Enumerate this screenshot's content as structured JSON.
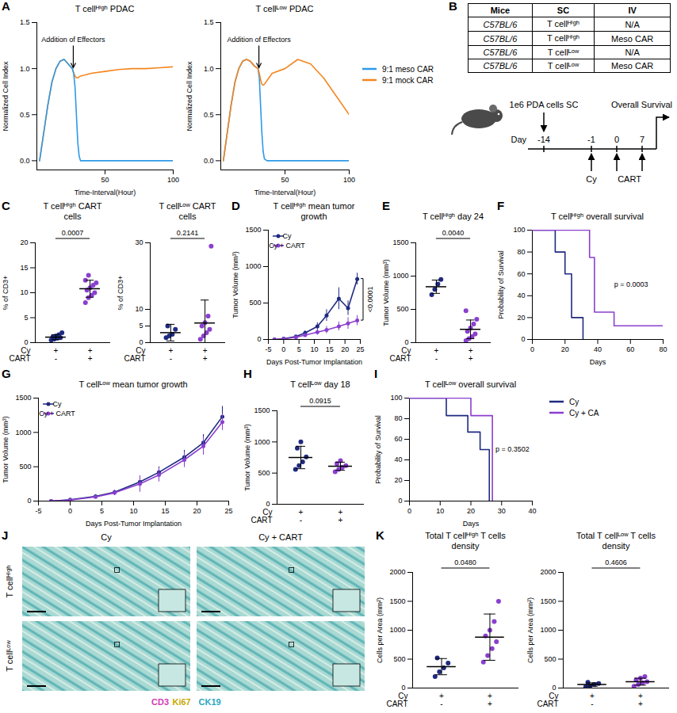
{
  "chart_data": [
    {
      "panel": "A",
      "type": "line",
      "title": "T cellᴴⁱᵍʰ PDAC",
      "x_label": "Time-Interval(Hour)",
      "y_label": "Normalized Cell Index",
      "xlim": [
        0,
        100
      ],
      "xticks": [
        50,
        100
      ],
      "ylim": [
        -0.1,
        1.5
      ],
      "yticks": [
        {
          "value": 0,
          "label": "0.0"
        },
        {
          "value": 0.5,
          "label": "0.5"
        },
        {
          "value": 1,
          "label": "1.0"
        },
        {
          "value": 1.5,
          "label": "1.5"
        }
      ],
      "series": [
        {
          "color": "#f5861f",
          "x": [
            2,
            5,
            8,
            11,
            14,
            17,
            20,
            23,
            26,
            27,
            28,
            29,
            30,
            31,
            32,
            35,
            40,
            50,
            60,
            70,
            80,
            90,
            100
          ],
          "values": [
            0,
            0.3,
            0.6,
            0.85,
            1.0,
            1.08,
            1.1,
            1.05,
            1.0,
            0.95,
            0.92,
            0.9,
            0.9,
            0.91,
            0.92,
            0.93,
            0.95,
            0.97,
            0.99,
            1.0,
            1.0,
            1.01,
            1.02
          ]
        },
        {
          "color": "#2d9ae8",
          "x": [
            2,
            5,
            8,
            11,
            14,
            17,
            20,
            23,
            26,
            27,
            28,
            29,
            30,
            31,
            32,
            35,
            40,
            50,
            60,
            70,
            80,
            90,
            100
          ],
          "values": [
            0,
            0.3,
            0.6,
            0.85,
            1.0,
            1.08,
            1.1,
            1.05,
            1.0,
            0.95,
            0.8,
            0.5,
            0.2,
            0.05,
            0,
            0,
            0,
            0,
            0,
            0,
            0,
            0,
            0
          ]
        }
      ],
      "arrows": [
        {
          "text": "Addition of Effectors",
          "x": 27,
          "y": 0.98
        }
      ]
    },
    {
      "panel": "A",
      "type": "line",
      "title": "T cellᴸᵒʷ PDAC",
      "x_label": "Time-Interval(Hour)",
      "y_label": "Normalized Cell Index",
      "xlim": [
        0,
        100
      ],
      "xticks": [
        50,
        100
      ],
      "ylim": [
        -0.1,
        1.5
      ],
      "yticks": [
        {
          "value": 0,
          "label": "0.0"
        },
        {
          "value": 0.5,
          "label": "0.5"
        },
        {
          "value": 1,
          "label": "1.0"
        },
        {
          "value": 1.5,
          "label": "1.5"
        }
      ],
      "legend": "right",
      "series": [
        {
          "name": "9:1 meso CAR",
          "color": "#2d9ae8",
          "x": [
            2,
            5,
            8,
            11,
            14,
            17,
            20,
            23,
            26,
            29,
            30,
            31,
            32,
            33,
            34,
            36,
            40,
            50,
            60,
            70,
            80,
            90,
            100
          ],
          "values": [
            0,
            0.3,
            0.6,
            0.85,
            1.0,
            1.08,
            1.1,
            1.08,
            1.03,
            1.0,
            0.9,
            0.6,
            0.3,
            0.1,
            0.02,
            0,
            0,
            0,
            0,
            0,
            0,
            0,
            0
          ]
        },
        {
          "name": "9:1 mock CAR",
          "color": "#f5861f",
          "x": [
            2,
            5,
            8,
            11,
            14,
            17,
            20,
            23,
            26,
            29,
            30,
            31,
            32,
            33,
            34,
            36,
            40,
            50,
            60,
            70,
            80,
            90,
            100
          ],
          "values": [
            0,
            0.3,
            0.6,
            0.85,
            1.0,
            1.08,
            1.1,
            1.08,
            1.03,
            1.0,
            0.95,
            0.88,
            0.83,
            0.82,
            0.83,
            0.87,
            0.95,
            1.0,
            1.1,
            1.05,
            0.9,
            0.7,
            0.5
          ]
        }
      ],
      "arrows": [
        {
          "text": "Addition of Effectors",
          "x": 30,
          "y": 0.98
        }
      ]
    },
    {
      "panel": "C",
      "type": "scatter",
      "title": "T cellᴴⁱᵍʰ CART cells",
      "y_label": "% of CD3+",
      "ylim": [
        0,
        20
      ],
      "yticks": [
        0,
        5,
        10,
        15,
        20
      ],
      "condition_rows": [
        {
          "name": "Cy",
          "marks": [
            "+",
            "+"
          ]
        },
        {
          "name": "CART",
          "marks": [
            "-",
            "+"
          ]
        }
      ],
      "groups": [
        {
          "color": "#1f2a80",
          "values": [
            0.5,
            0.7,
            0.9,
            1.0,
            1.1,
            1.3,
            1.6,
            2.0
          ],
          "mean": 1.1,
          "error": 0.5
        },
        {
          "color": "#8a3fcf",
          "values": [
            8.0,
            9.0,
            9.5,
            10.0,
            10.5,
            11.0,
            11.5,
            12.0,
            12.5,
            13.5
          ],
          "mean": 10.8,
          "error": 1.7
        }
      ],
      "p_value": "0.0007"
    },
    {
      "panel": "C",
      "type": "scatter",
      "title": "T cellᴸᵒʷ CART cells",
      "y_label": "% of CD3+",
      "ylim": [
        0,
        30
      ],
      "yticks": [
        0,
        5,
        10,
        30
      ],
      "condition_rows": [
        {
          "name": "Cy",
          "marks": [
            "+",
            "+"
          ]
        },
        {
          "name": "CART",
          "marks": [
            "-",
            "+"
          ]
        }
      ],
      "groups": [
        {
          "color": "#1f2a80",
          "values": [
            1.5,
            2.0,
            2.5,
            4.0,
            5.0
          ],
          "mean": 3.0,
          "error": 2.5
        },
        {
          "color": "#8a3fcf",
          "values": [
            1.0,
            2.0,
            3.0,
            4.0,
            5.0,
            6.0,
            8.0,
            29.0
          ],
          "mean": 5.9,
          "error": 6.9
        }
      ],
      "p_value": "0.2141"
    },
    {
      "panel": "D",
      "type": "line",
      "title": "T cellᴴⁱᵍʰ mean tumor growth",
      "x_label": "Days Post-Tumor Implantation",
      "y_label": "Tumor Volume (mm³)",
      "xlim": [
        -5,
        25
      ],
      "xticks": [
        -5,
        0,
        5,
        10,
        15,
        20,
        25
      ],
      "ylim": [
        0,
        1500
      ],
      "yticks": [
        0,
        500,
        1000,
        1500
      ],
      "legend": "top-left",
      "marker": "circle",
      "series": [
        {
          "name": "Cy",
          "color": "#1f2a80",
          "x": [
            -3,
            0,
            4,
            7,
            11,
            14,
            18,
            21,
            24
          ],
          "values": [
            0,
            10,
            40,
            90,
            180,
            330,
            560,
            430,
            830
          ],
          "errors": [
            0,
            5,
            15,
            30,
            50,
            80,
            150,
            100,
            80
          ]
        },
        {
          "name": "Cy + CART",
          "color": "#8a3fcf",
          "x": [
            -3,
            0,
            4,
            7,
            11,
            14,
            18,
            21,
            24
          ],
          "values": [
            0,
            8,
            30,
            60,
            100,
            130,
            180,
            220,
            260
          ],
          "errors": [
            0,
            5,
            10,
            20,
            40,
            50,
            60,
            80,
            70
          ]
        }
      ],
      "p_value": "<0.0001"
    },
    {
      "panel": "E",
      "type": "scatter",
      "title": "T cellᴴⁱᵍʰ day 24",
      "y_label": "Tumor Volume (mm³)",
      "ylim": [
        0,
        1500
      ],
      "yticks": [
        0,
        500,
        1000,
        1500
      ],
      "condition_rows": [
        {
          "name": "Cy",
          "marks": [
            "+",
            "+"
          ]
        },
        {
          "name": "CART",
          "marks": [
            "-",
            "+"
          ]
        }
      ],
      "groups": [
        {
          "color": "#1f2a80",
          "values": [
            720,
            800,
            880,
            950
          ],
          "mean": 840,
          "error": 100
        },
        {
          "color": "#8a3fcf",
          "values": [
            30,
            60,
            90,
            130,
            170,
            220,
            280,
            350,
            480
          ],
          "mean": 200,
          "error": 140
        }
      ],
      "p_value": "0.0040"
    },
    {
      "panel": "F",
      "type": "survival",
      "title": "T cellᴴⁱᵍʰ overall survival",
      "x_label": "Days",
      "y_label": "Probability of Survival",
      "xlim": [
        0,
        80
      ],
      "xticks": [
        0,
        20,
        40,
        60,
        80
      ],
      "ylim": [
        0,
        100
      ],
      "yticks": [
        0,
        20,
        40,
        60,
        80,
        100
      ],
      "series": [
        {
          "color": "#1f2a80",
          "x": [
            0,
            14,
            20,
            24,
            31
          ],
          "values": [
            100,
            80,
            60,
            20,
            0
          ]
        },
        {
          "color": "#8a3fcf",
          "x": [
            0,
            35,
            38,
            50,
            80
          ],
          "values": [
            100,
            75,
            25,
            12.5,
            12.5
          ]
        }
      ],
      "annotations": [
        {
          "text": "p = 0.0003",
          "x": 50,
          "y": 50
        }
      ]
    },
    {
      "panel": "G",
      "type": "line",
      "title": "T cellᴸᵒʷ mean tumor growth",
      "x_label": "Days Post-Tumor Implantation",
      "y_label": "Tumor Volume (mm³)",
      "xlim": [
        -5,
        25
      ],
      "xticks": [
        -5,
        0,
        5,
        10,
        15,
        20,
        25
      ],
      "ylim": [
        0,
        1500
      ],
      "yticks": [
        0,
        500,
        1000,
        1500
      ],
      "legend": "top-left",
      "marker": "circle",
      "series": [
        {
          "name": "Cy",
          "color": "#1f2a80",
          "x": [
            -3,
            0,
            4,
            7,
            11,
            14,
            18,
            21,
            24
          ],
          "values": [
            0,
            20,
            70,
            130,
            280,
            420,
            640,
            850,
            1230
          ],
          "errors": [
            0,
            10,
            20,
            30,
            60,
            80,
            100,
            120,
            150
          ]
        },
        {
          "name": "Cy + CART",
          "color": "#8a3fcf",
          "x": [
            -3,
            0,
            4,
            7,
            11,
            14,
            18,
            21,
            24
          ],
          "values": [
            0,
            15,
            60,
            120,
            250,
            380,
            600,
            800,
            1150
          ],
          "errors": [
            0,
            10,
            20,
            40,
            120,
            100,
            110,
            130,
            120
          ]
        }
      ]
    },
    {
      "panel": "H",
      "type": "scatter",
      "title": "T cellᴸᵒʷ day 18",
      "y_label": "Tumor Volume (mm³)",
      "ylim": [
        0,
        1500
      ],
      "yticks": [
        0,
        500,
        1000,
        1500
      ],
      "condition_rows": [
        {
          "name": "Cy",
          "marks": [
            "+",
            "+"
          ]
        },
        {
          "name": "CART",
          "marks": [
            "-",
            "+"
          ]
        }
      ],
      "groups": [
        {
          "color": "#1f2a80",
          "values": [
            560,
            620,
            680,
            760,
            900,
            1000
          ],
          "mean": 750,
          "error": 180
        },
        {
          "color": "#8a3fcf",
          "values": [
            520,
            560,
            590,
            620,
            650,
            700
          ],
          "mean": 610,
          "error": 65
        }
      ],
      "p_value": "0.0915"
    },
    {
      "panel": "I",
      "type": "survival",
      "title": "T cellᴸᵒʷ overall survival",
      "x_label": "Days",
      "y_label": "Probability of Survival",
      "xlim": [
        0,
        40
      ],
      "xticks": [
        0,
        10,
        20,
        30,
        40
      ],
      "ylim": [
        0,
        100
      ],
      "yticks": [
        0,
        20,
        40,
        60,
        80,
        100
      ],
      "legend": "right",
      "series": [
        {
          "name": "Cy",
          "color": "#1f2a80",
          "x": [
            0,
            12,
            19,
            23,
            26
          ],
          "values": [
            100,
            83,
            67,
            50,
            0
          ]
        },
        {
          "name": "Cy + CA",
          "color": "#8a3fcf",
          "x": [
            0,
            20,
            27
          ],
          "values": [
            100,
            83,
            0
          ]
        }
      ],
      "annotations": [
        {
          "text": "p = 0.3502",
          "x": 28,
          "y": 50
        }
      ]
    },
    {
      "panel": "K",
      "type": "scatter",
      "title": "Total T cellᴴⁱᵍʰ T cells density",
      "y_label": "Cells per Area (mm²)",
      "ylim": [
        0,
        2000
      ],
      "yticks": [
        0,
        500,
        1000,
        1500,
        2000
      ],
      "condition_rows": [
        {
          "name": "Cy",
          "marks": [
            "+",
            "+"
          ]
        },
        {
          "name": "CART",
          "marks": [
            "-",
            "+"
          ]
        }
      ],
      "groups": [
        {
          "color": "#1f2a80",
          "values": [
            200,
            280,
            350,
            430,
            520
          ],
          "mean": 370,
          "error": 140
        },
        {
          "color": "#8a3fcf",
          "values": [
            450,
            560,
            680,
            800,
            900,
            1000,
            1150,
            1500
          ],
          "mean": 880,
          "error": 400
        }
      ],
      "p_value": "0.0480"
    },
    {
      "panel": "K",
      "type": "scatter",
      "title": "Total T cellᴸᵒʷ T cells density",
      "y_label": "Cells per Area (mm²)",
      "ylim": [
        0,
        2000
      ],
      "yticks": [
        0,
        500,
        1000,
        1500,
        2000
      ],
      "condition_rows": [
        {
          "name": "Cy",
          "marks": [
            "+",
            "+"
          ]
        },
        {
          "name": "CART",
          "marks": [
            "-",
            "+"
          ]
        }
      ],
      "groups": [
        {
          "color": "#1f2a80",
          "values": [
            20,
            40,
            60,
            80,
            100
          ],
          "mean": 60,
          "error": 30
        },
        {
          "color": "#8a3fcf",
          "values": [
            30,
            60,
            90,
            110,
            140,
            170,
            200
          ],
          "mean": 110,
          "error": 60
        }
      ],
      "p_value": "0.4606"
    }
  ],
  "schematic": {
    "panel": "B",
    "table": {
      "header": [
        "Mice",
        "SC",
        "IV"
      ],
      "rows": [
        [
          "C57BL/6",
          "T cellᴴⁱᵍʰ",
          "N/A"
        ],
        [
          "C57BL/6",
          "T cellᴴⁱᵍʰ",
          "Meso CAR"
        ],
        [
          "C57BL/6",
          "T cellᴸᵒʷ",
          "N/A"
        ],
        [
          "C57BL/6",
          "T cellᴸᵒʷ",
          "Meso CAR"
        ]
      ]
    },
    "timeline": {
      "axis_label": "Day",
      "days": [
        -14,
        -1,
        0,
        7
      ],
      "start_label": "1e6 PDA cells SC",
      "end_label": "Overall Survival",
      "events": [
        {
          "days": [
            -1
          ],
          "label": "Cy"
        },
        {
          "days": [
            0,
            7
          ],
          "label": "CART"
        }
      ]
    }
  },
  "images": {
    "panel": "J",
    "columns": [
      "Cy",
      "Cy + CART"
    ],
    "rows": [
      "T cellᴴⁱᵍʰ",
      "T cellᴸᵒʷ"
    ],
    "stains": [
      {
        "name": "CD3",
        "color": "#d23cb4"
      },
      {
        "name": "Ki67",
        "color": "#c9a800"
      },
      {
        "name": "CK19",
        "color": "#2aa7c0"
      }
    ]
  }
}
